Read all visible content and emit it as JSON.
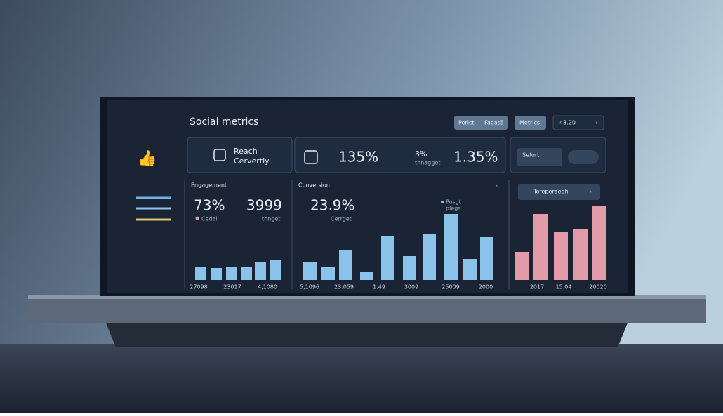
{
  "header": {
    "title": "Social metrics",
    "buttons": [
      "Perict",
      "Faeas5",
      "Metrics",
      "43.20"
    ]
  },
  "top_cards": {
    "reach": "Reach",
    "reach_sub": "Cervertly",
    "stat1": "135%",
    "stat2": "3%",
    "stat2_sub": "thnagget",
    "stat3": "1.35%",
    "select": "Sefurt"
  },
  "engagement": {
    "title": "Engagement",
    "metric1": "73%",
    "metric1_label": "Cedal",
    "metric2": "3999",
    "metric2_label": "thnget",
    "bars": [
      19,
      17,
      19,
      18,
      25,
      29
    ],
    "x_labels": [
      "27098",
      "23017",
      "4,1080"
    ]
  },
  "conversion": {
    "title": "Conversion",
    "metric": "23.9%",
    "metric_label": "Cerrget",
    "legend": [
      "Posgt",
      "plegs"
    ],
    "bars": [
      25,
      18,
      42,
      11,
      63,
      34,
      65,
      94,
      30,
      61
    ],
    "x_labels": [
      "5,1096",
      "23.059",
      "1.49",
      "3009",
      "25009",
      "2000"
    ]
  },
  "trend": {
    "title": "Toreperaedh",
    "bars": [
      40,
      94,
      69,
      72,
      106
    ],
    "x_labels": [
      "2017",
      "15.04",
      "20020"
    ]
  }
}
